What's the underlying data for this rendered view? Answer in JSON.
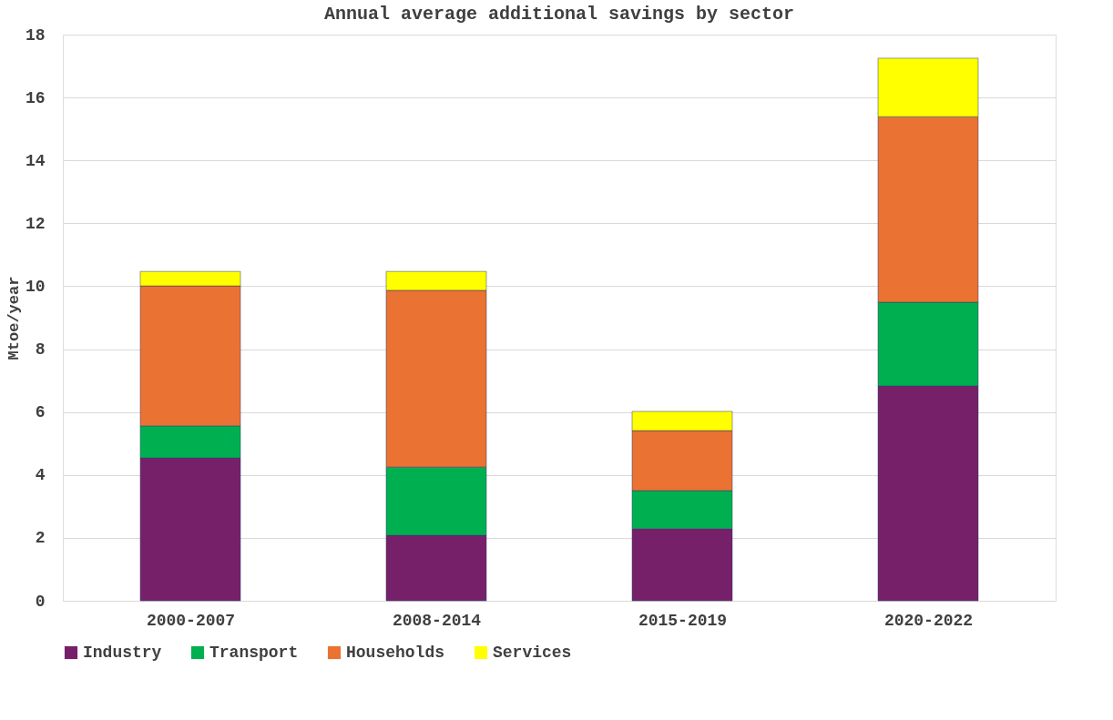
{
  "chart_data": {
    "type": "bar",
    "title": "Annual average additional savings by sector",
    "ylabel": "Mtoe/year",
    "categories": [
      "2000-2007",
      "2008-2014",
      "2015-2019",
      "2020-2022"
    ],
    "stacked": true,
    "series": [
      {
        "name": "Industry",
        "color": "#77206a",
        "values": [
          4.54,
          2.08,
          2.29,
          6.83
        ]
      },
      {
        "name": "Transport",
        "color": "#00b050",
        "values": [
          1.02,
          2.17,
          1.21,
          2.66
        ]
      },
      {
        "name": "Households",
        "color": "#ea7232",
        "values": [
          4.45,
          5.62,
          1.91,
          5.9
        ]
      },
      {
        "name": "Services",
        "color": "#ffff00",
        "values": [
          0.46,
          0.6,
          0.61,
          1.86
        ]
      }
    ],
    "ylim": [
      0,
      18
    ],
    "yticks": [
      0,
      2,
      4,
      6,
      8,
      10,
      12,
      14,
      16,
      18
    ],
    "grid": "y",
    "legend": "bottom"
  }
}
